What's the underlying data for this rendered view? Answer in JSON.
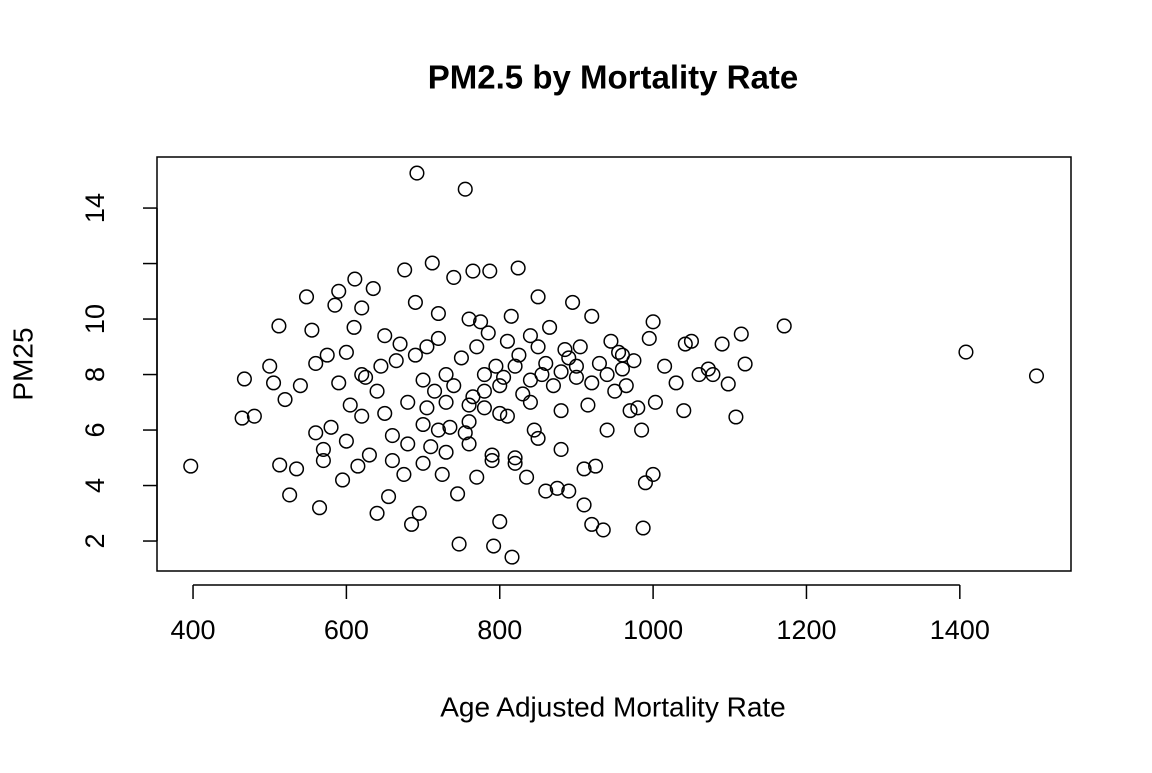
{
  "chart_data": {
    "type": "scatter",
    "title": "PM2.5 by Mortality Rate",
    "x_label": "Age Adjusted Mortality Rate",
    "y_label": "PM25",
    "xlim": [
      353,
      1545
    ],
    "ylim": [
      0.92,
      15.84
    ],
    "xticks": [
      400,
      600,
      800,
      1000,
      1200,
      1400
    ],
    "yticks": [
      2,
      4,
      6,
      8,
      10,
      {
        "value": 12,
        "label": null
      },
      14
    ],
    "color": "#000000",
    "x": [
      692,
      755,
      397,
      1408,
      1500,
      1171,
      1115,
      1120,
      1108,
      1098,
      816,
      747,
      792,
      987,
      712,
      824,
      676,
      765,
      787,
      611,
      464,
      467,
      512,
      513,
      526,
      480,
      500,
      505,
      520,
      535,
      540,
      548,
      555,
      560,
      565,
      570,
      575,
      580,
      585,
      590,
      595,
      600,
      605,
      610,
      615,
      620,
      625,
      630,
      635,
      640,
      645,
      650,
      655,
      660,
      665,
      670,
      675,
      680,
      685,
      690,
      695,
      700,
      705,
      710,
      715,
      720,
      725,
      730,
      735,
      740,
      745,
      750,
      755,
      760,
      765,
      770,
      775,
      780,
      785,
      790,
      795,
      800,
      805,
      810,
      815,
      820,
      825,
      830,
      835,
      840,
      845,
      850,
      855,
      860,
      865,
      870,
      875,
      880,
      885,
      890,
      895,
      900,
      905,
      910,
      915,
      920,
      925,
      930,
      935,
      940,
      945,
      950,
      955,
      960,
      965,
      970,
      975,
      980,
      985,
      990,
      995,
      1000,
      1000,
      1003,
      1015,
      1030,
      1040,
      1042,
      1050,
      1060,
      1072,
      1078,
      1090,
      570,
      600,
      620,
      640,
      660,
      680,
      700,
      720,
      740,
      760,
      780,
      800,
      820,
      840,
      860,
      880,
      900,
      920,
      940,
      960,
      700,
      730,
      760,
      790,
      820,
      850,
      880,
      910,
      920,
      650,
      690,
      720,
      770,
      810,
      850,
      890,
      620,
      590,
      560,
      760,
      800,
      840,
      780,
      730,
      705
    ],
    "values": [
      15.26,
      14.68,
      4.7,
      8.81,
      7.95,
      9.75,
      9.46,
      8.38,
      6.47,
      7.66,
      1.42,
      1.89,
      1.82,
      2.47,
      12.02,
      11.84,
      11.77,
      11.73,
      11.73,
      11.44,
      6.43,
      7.84,
      9.75,
      4.74,
      3.66,
      6.5,
      8.3,
      7.7,
      7.1,
      4.6,
      7.6,
      10.8,
      9.6,
      5.9,
      3.2,
      5.3,
      8.7,
      6.1,
      10.5,
      11.0,
      4.2,
      8.8,
      6.9,
      9.7,
      4.7,
      10.4,
      7.9,
      5.1,
      11.1,
      3.0,
      8.3,
      6.6,
      3.6,
      5.8,
      8.5,
      9.1,
      4.4,
      7.0,
      2.6,
      10.6,
      3.0,
      6.2,
      9.0,
      5.4,
      7.4,
      10.2,
      4.4,
      8.0,
      6.1,
      11.5,
      3.7,
      8.6,
      5.9,
      10.0,
      7.2,
      4.3,
      9.9,
      6.8,
      9.5,
      5.1,
      8.3,
      2.7,
      7.9,
      6.5,
      10.1,
      5.0,
      8.7,
      7.3,
      4.3,
      9.4,
      6.0,
      10.8,
      8.0,
      3.8,
      9.7,
      7.6,
      3.9,
      6.7,
      8.9,
      3.8,
      10.6,
      7.9,
      9.0,
      4.6,
      6.9,
      10.1,
      4.7,
      8.4,
      2.4,
      6.0,
      9.2,
      7.4,
      8.8,
      8.2,
      7.6,
      6.7,
      8.5,
      6.8,
      6.0,
      4.1,
      9.3,
      9.9,
      4.4,
      7.0,
      8.3,
      7.7,
      6.7,
      9.1,
      9.2,
      8.0,
      8.2,
      8.0,
      9.1,
      4.9,
      5.6,
      6.5,
      7.4,
      4.9,
      5.5,
      7.8,
      6.0,
      7.6,
      6.3,
      8.0,
      7.6,
      8.3,
      7.8,
      8.4,
      8.1,
      8.3,
      7.7,
      8.0,
      8.7,
      4.8,
      5.2,
      5.5,
      4.9,
      4.8,
      5.7,
      5.3,
      3.3,
      2.6,
      9.4,
      8.7,
      9.3,
      9.0,
      9.2,
      9.0,
      8.6,
      8.0,
      7.7,
      8.4,
      6.9,
      6.6,
      7.0,
      7.4,
      7.0,
      6.8
    ]
  }
}
